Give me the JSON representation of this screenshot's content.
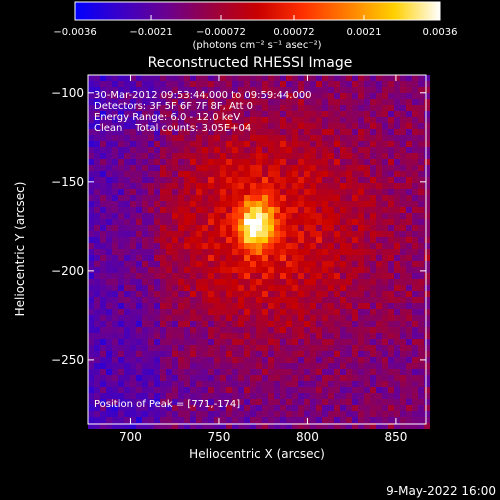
{
  "chart_data": {
    "type": "heatmap",
    "title": "Reconstructed RHESSI Image",
    "xlabel": "Heliocentric X (arcsec)",
    "ylabel": "Heliocentric Y (arcsec)",
    "xlim": [
      676,
      867
    ],
    "ylim": [
      -286,
      -90
    ],
    "x_ticks": [
      700,
      750,
      800,
      850
    ],
    "x_tick_labels": [
      "700",
      "750",
      "800",
      "850"
    ],
    "y_ticks": [
      -100,
      -150,
      -200,
      -250
    ],
    "y_tick_labels": [
      "−100",
      "−150",
      "−200",
      "−250"
    ],
    "colorbar": {
      "min": -0.0036,
      "max": 0.0036,
      "ticks": [
        -0.0036,
        -0.0021,
        -0.00072,
        0.00072,
        0.0021,
        0.0036
      ],
      "tick_labels": [
        "−0.0036",
        "−0.0021",
        "−0.00072",
        "0.00072",
        "0.0021",
        "0.0036"
      ],
      "units_label": "(photons cm⁻² s⁻¹ asec⁻²)",
      "colors": [
        "#0000ff",
        "#3a00c8",
        "#6a0090",
        "#9a0040",
        "#c80000",
        "#ff3000",
        "#ff8000",
        "#ffd000",
        "#ffffff"
      ]
    },
    "peak": {
      "x": 771,
      "y": -174,
      "value": 0.0036
    },
    "annotations": [
      "30-Mar-2012 09:53:44.000 to 09:59:44.000",
      "Detectors: 3F 5F 6F 7F 8F, Att 0",
      "Energy Range: 6.0 - 12.0 keV",
      "Clean    Total counts: 3.05E+04"
    ],
    "peak_label": "Position of Peak = [771,-174]"
  },
  "footer_date": "9-May-2022 16:00"
}
